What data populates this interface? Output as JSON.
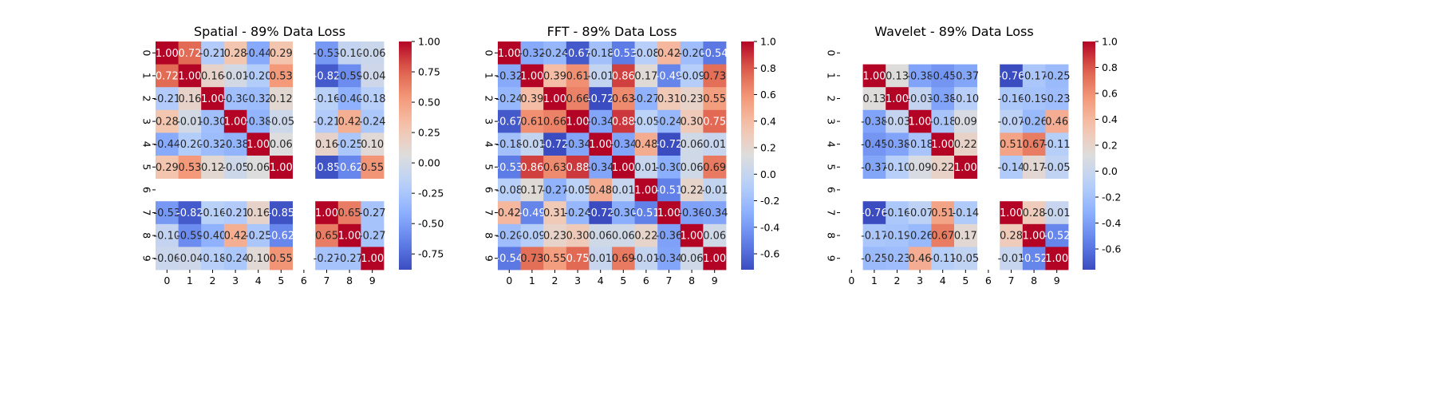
{
  "chart_data": [
    {
      "type": "heatmap",
      "title": "Spatial - 89% Data Loss",
      "row_labels": [
        "0",
        "1",
        "2",
        "3",
        "4",
        "5",
        "6",
        "7",
        "8",
        "9"
      ],
      "col_labels": [
        "0",
        "1",
        "2",
        "3",
        "4",
        "5",
        "6",
        "7",
        "8",
        "9"
      ],
      "colormap": "coolwarm",
      "vmin": -0.88,
      "vmax": 1.0,
      "colorbar_ticks": [
        "-0.75",
        "-0.50",
        "-0.25",
        "0.00",
        "0.25",
        "0.50",
        "0.75",
        "1.00"
      ],
      "colorbar_values": [
        -0.75,
        -0.5,
        -0.25,
        0.0,
        0.25,
        0.5,
        0.75,
        1.0
      ],
      "values": [
        [
          1.0,
          0.72,
          -0.21,
          0.28,
          -0.44,
          0.29,
          null,
          -0.53,
          -0.1,
          -0.06
        ],
        [
          0.72,
          1.0,
          0.16,
          -0.01,
          -0.2,
          0.53,
          null,
          -0.82,
          -0.59,
          -0.04
        ],
        [
          -0.21,
          0.16,
          1.0,
          -0.3,
          -0.32,
          0.12,
          null,
          -0.16,
          -0.4,
          -0.18
        ],
        [
          0.28,
          -0.01,
          -0.3,
          1.0,
          -0.38,
          -0.05,
          null,
          -0.21,
          0.42,
          -0.24
        ],
        [
          -0.44,
          -0.2,
          -0.32,
          -0.38,
          1.0,
          0.06,
          null,
          0.16,
          -0.25,
          0.1
        ],
        [
          0.29,
          0.53,
          0.12,
          -0.05,
          0.06,
          1.0,
          null,
          -0.85,
          -0.62,
          0.55
        ],
        [
          null,
          null,
          null,
          null,
          null,
          null,
          null,
          null,
          null,
          null
        ],
        [
          -0.53,
          -0.82,
          -0.16,
          -0.21,
          0.16,
          -0.85,
          null,
          1.0,
          0.65,
          -0.27
        ],
        [
          -0.1,
          -0.59,
          -0.4,
          0.42,
          -0.25,
          -0.62,
          null,
          0.65,
          1.0,
          -0.27
        ],
        [
          -0.06,
          -0.04,
          -0.18,
          -0.24,
          0.1,
          0.55,
          null,
          -0.27,
          -0.27,
          1.0
        ]
      ]
    },
    {
      "type": "heatmap",
      "title": "FFT - 89% Data Loss",
      "row_labels": [
        "0",
        "1",
        "2",
        "3",
        "4",
        "5",
        "6",
        "7",
        "8",
        "9"
      ],
      "col_labels": [
        "0",
        "1",
        "2",
        "3",
        "4",
        "5",
        "6",
        "7",
        "8",
        "9"
      ],
      "colormap": "coolwarm",
      "vmin": -0.72,
      "vmax": 1.0,
      "colorbar_ticks": [
        "-0.6",
        "-0.4",
        "-0.2",
        "0.0",
        "0.2",
        "0.4",
        "0.6",
        "0.8",
        "1.0"
      ],
      "colorbar_values": [
        -0.6,
        -0.4,
        -0.2,
        0.0,
        0.2,
        0.4,
        0.6,
        0.8,
        1.0
      ],
      "values": [
        [
          1.0,
          -0.32,
          -0.24,
          -0.67,
          -0.18,
          -0.53,
          -0.08,
          0.42,
          -0.2,
          -0.54
        ],
        [
          -0.32,
          1.0,
          0.39,
          0.61,
          -0.01,
          0.86,
          0.17,
          -0.49,
          -0.09,
          0.73
        ],
        [
          -0.24,
          0.39,
          1.0,
          0.66,
          -0.72,
          0.63,
          -0.27,
          0.31,
          0.23,
          0.55
        ],
        [
          -0.67,
          0.61,
          0.66,
          1.0,
          -0.34,
          0.88,
          -0.05,
          -0.24,
          0.3,
          0.75
        ],
        [
          -0.18,
          -0.01,
          -0.72,
          -0.34,
          1.0,
          -0.34,
          0.48,
          -0.72,
          0.06,
          0.01
        ],
        [
          -0.53,
          0.86,
          0.63,
          0.88,
          -0.34,
          1.0,
          0.01,
          -0.3,
          0.06,
          0.69
        ],
        [
          -0.08,
          0.17,
          -0.27,
          -0.05,
          0.48,
          0.01,
          1.0,
          -0.51,
          0.22,
          -0.01
        ],
        [
          0.42,
          -0.49,
          0.31,
          -0.24,
          -0.72,
          -0.3,
          -0.51,
          1.0,
          -0.36,
          -0.34
        ],
        [
          -0.2,
          -0.09,
          0.23,
          0.3,
          0.06,
          0.06,
          0.22,
          -0.36,
          1.0,
          0.06
        ],
        [
          -0.54,
          0.73,
          0.55,
          0.75,
          0.01,
          0.69,
          -0.01,
          -0.34,
          0.06,
          1.0
        ]
      ]
    },
    {
      "type": "heatmap",
      "title": "Wavelet - 89% Data Loss",
      "row_labels": [
        "0",
        "1",
        "2",
        "3",
        "4",
        "5",
        "6",
        "7",
        "8",
        "9"
      ],
      "col_labels": [
        "0",
        "1",
        "2",
        "3",
        "4",
        "5",
        "6",
        "7",
        "8",
        "9"
      ],
      "colormap": "coolwarm",
      "vmin": -0.76,
      "vmax": 1.0,
      "colorbar_ticks": [
        "-0.6",
        "-0.4",
        "-0.2",
        "0.0",
        "0.2",
        "0.4",
        "0.6",
        "0.8",
        "1.0"
      ],
      "colorbar_values": [
        -0.6,
        -0.4,
        -0.2,
        0.0,
        0.2,
        0.4,
        0.6,
        0.8,
        1.0
      ],
      "values": [
        [
          null,
          null,
          null,
          null,
          null,
          null,
          null,
          null,
          null,
          null
        ],
        [
          null,
          1.0,
          0.13,
          -0.38,
          -0.45,
          -0.37,
          null,
          -0.76,
          -0.17,
          -0.25
        ],
        [
          null,
          0.13,
          1.0,
          -0.03,
          -0.38,
          -0.1,
          null,
          -0.16,
          -0.19,
          -0.23
        ],
        [
          null,
          -0.38,
          -0.03,
          1.0,
          -0.18,
          0.09,
          null,
          -0.07,
          -0.26,
          0.46
        ],
        [
          null,
          -0.45,
          -0.38,
          -0.18,
          1.0,
          0.22,
          null,
          0.51,
          0.67,
          -0.11
        ],
        [
          null,
          -0.37,
          -0.1,
          0.09,
          0.22,
          1.0,
          null,
          -0.14,
          0.17,
          -0.05
        ],
        [
          null,
          null,
          null,
          null,
          null,
          null,
          null,
          null,
          null,
          null
        ],
        [
          null,
          -0.76,
          -0.16,
          -0.07,
          0.51,
          -0.14,
          null,
          1.0,
          0.28,
          -0.01
        ],
        [
          null,
          -0.17,
          -0.19,
          -0.26,
          0.67,
          0.17,
          null,
          0.28,
          1.0,
          -0.52
        ],
        [
          null,
          -0.25,
          -0.23,
          0.46,
          -0.11,
          -0.05,
          null,
          -0.01,
          -0.52,
          1.0
        ]
      ]
    }
  ]
}
